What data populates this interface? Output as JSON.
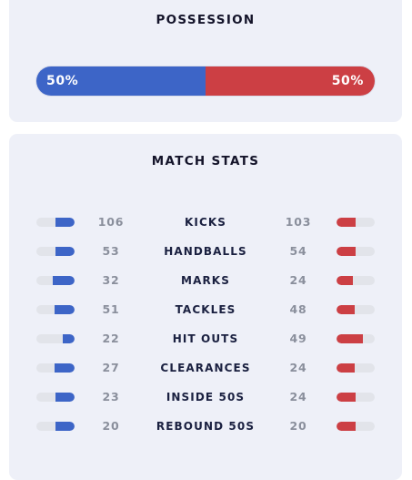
{
  "possession": {
    "title": "POSSESSION",
    "home_label": "50%",
    "away_label": "50%",
    "home_percent": 50,
    "home_color": "#3d65c7",
    "away_color": "#cc3f44"
  },
  "match_stats": {
    "title": "MATCH STATS",
    "rows": [
      {
        "name": "KICKS",
        "home": "106",
        "away": "103",
        "home_fill": 0.5,
        "away_fill": 0.5
      },
      {
        "name": "HANDBALLS",
        "home": "53",
        "away": "54",
        "home_fill": 0.5,
        "away_fill": 0.5
      },
      {
        "name": "MARKS",
        "home": "32",
        "away": "24",
        "home_fill": 0.57,
        "away_fill": 0.43
      },
      {
        "name": "TACKLES",
        "home": "51",
        "away": "48",
        "home_fill": 0.52,
        "away_fill": 0.48
      },
      {
        "name": "HIT OUTS",
        "home": "22",
        "away": "49",
        "home_fill": 0.31,
        "away_fill": 0.69
      },
      {
        "name": "CLEARANCES",
        "home": "27",
        "away": "24",
        "home_fill": 0.53,
        "away_fill": 0.47
      },
      {
        "name": "INSIDE 50S",
        "home": "23",
        "away": "24",
        "home_fill": 0.49,
        "away_fill": 0.51
      },
      {
        "name": "REBOUND 50S",
        "home": "20",
        "away": "20",
        "home_fill": 0.5,
        "away_fill": 0.5
      }
    ]
  }
}
